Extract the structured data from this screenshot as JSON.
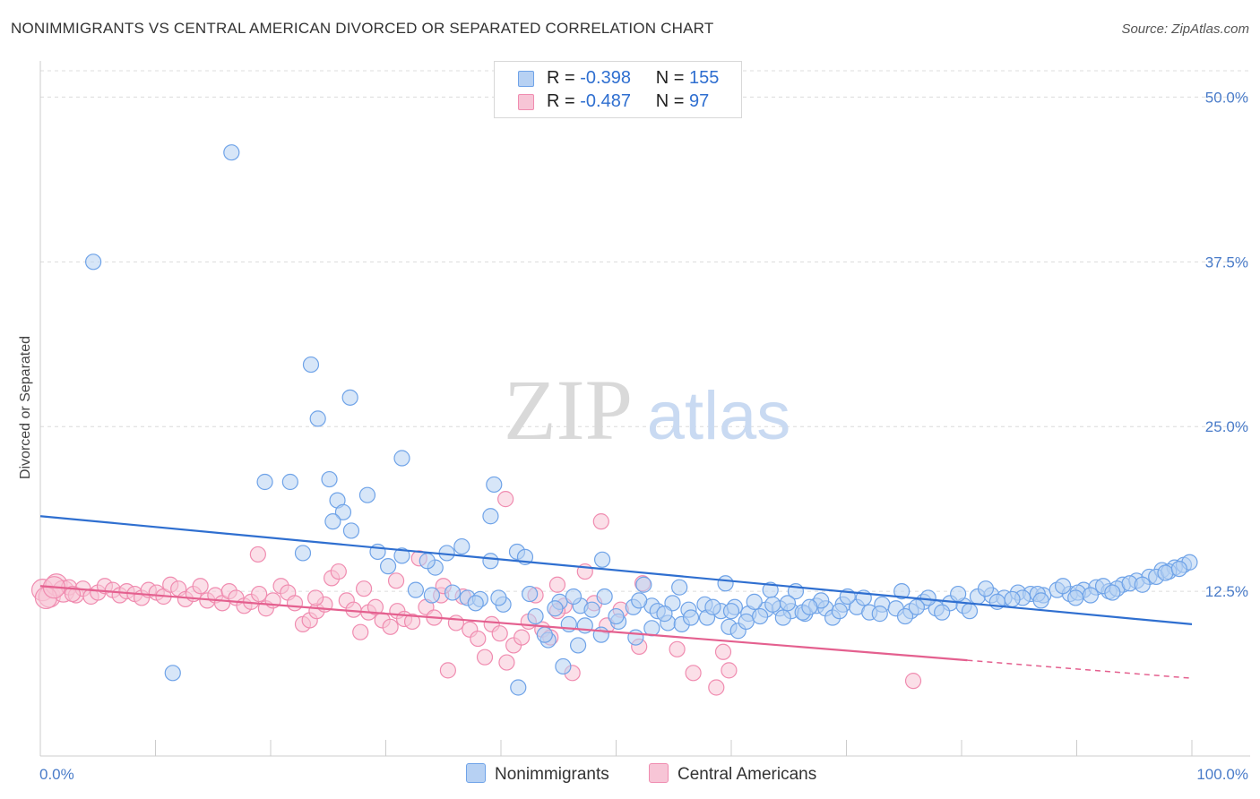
{
  "title": "NONIMMIGRANTS VS CENTRAL AMERICAN DIVORCED OR SEPARATED CORRELATION CHART",
  "source": "Source: ZipAtlas.com",
  "watermark": {
    "zip": "ZIP",
    "atlas": "atlas"
  },
  "legend": {
    "series": [
      {
        "r_label": "R =",
        "r_value": "-0.398",
        "n_label": "N =",
        "n_value": "155",
        "color": "#6fa3e8",
        "fill": "#b7d1f3"
      },
      {
        "r_label": "R =",
        "r_value": "-0.487",
        "n_label": "N =",
        "n_value": "97",
        "color": "#f08cb0",
        "fill": "#f7c5d6"
      }
    ]
  },
  "bottom_legend": [
    "Nonimmigrants",
    "Central Americans"
  ],
  "chart_data": {
    "type": "scatter",
    "title": "NONIMMIGRANTS VS CENTRAL AMERICAN DIVORCED OR SEPARATED CORRELATION CHART",
    "xlabel": "",
    "ylabel": "Divorced or Separated",
    "xlim": [
      0,
      100
    ],
    "ylim": [
      0,
      52
    ],
    "x_tick_labels": [
      "0.0%",
      "100.0%"
    ],
    "y_ticks": [
      12.5,
      25.0,
      37.5,
      50.0
    ],
    "y_tick_labels": [
      "12.5%",
      "25.0%",
      "37.5%",
      "50.0%"
    ],
    "grid": "horizontal dashed",
    "legend_position": "top-center",
    "series": [
      {
        "name": "Nonimmigrants",
        "color": "#6fa3e8",
        "fill": "#b7d1f3",
        "trend": {
          "x": [
            0,
            100
          ],
          "y": [
            18.2,
            10.0
          ],
          "dashed_from": null
        },
        "points": [
          [
            4.6,
            37.5
          ],
          [
            16.6,
            45.8
          ],
          [
            11.5,
            6.3
          ],
          [
            23.5,
            29.7
          ],
          [
            26.9,
            27.2
          ],
          [
            24.1,
            25.6
          ],
          [
            19.5,
            20.8
          ],
          [
            21.7,
            20.8
          ],
          [
            25.1,
            21.0
          ],
          [
            31.4,
            22.6
          ],
          [
            25.8,
            19.4
          ],
          [
            28.4,
            19.8
          ],
          [
            26.3,
            18.5
          ],
          [
            25.4,
            17.8
          ],
          [
            27.0,
            17.1
          ],
          [
            22.8,
            15.4
          ],
          [
            29.3,
            15.5
          ],
          [
            31.4,
            15.2
          ],
          [
            35.3,
            15.4
          ],
          [
            36.6,
            15.9
          ],
          [
            39.1,
            14.8
          ],
          [
            30.2,
            14.4
          ],
          [
            34.3,
            14.3
          ],
          [
            33.6,
            14.8
          ],
          [
            41.4,
            15.5
          ],
          [
            42.1,
            15.1
          ],
          [
            48.8,
            14.9
          ],
          [
            52.4,
            13.0
          ],
          [
            55.5,
            12.8
          ],
          [
            59.5,
            13.1
          ],
          [
            39.4,
            20.6
          ],
          [
            39.1,
            18.2
          ],
          [
            32.6,
            12.6
          ],
          [
            34.0,
            12.2
          ],
          [
            35.8,
            12.4
          ],
          [
            37.1,
            12.0
          ],
          [
            38.2,
            11.9
          ],
          [
            40.2,
            11.5
          ],
          [
            42.5,
            12.3
          ],
          [
            45.1,
            11.7
          ],
          [
            46.9,
            11.4
          ],
          [
            47.9,
            11.1
          ],
          [
            49.0,
            12.1
          ],
          [
            51.5,
            11.3
          ],
          [
            53.1,
            11.4
          ],
          [
            54.9,
            11.6
          ],
          [
            56.3,
            11.1
          ],
          [
            57.7,
            11.5
          ],
          [
            59.1,
            11.0
          ],
          [
            60.3,
            11.3
          ],
          [
            61.5,
            10.8
          ],
          [
            63.0,
            11.1
          ],
          [
            64.2,
            11.2
          ],
          [
            65.2,
            11.0
          ],
          [
            66.4,
            10.8
          ],
          [
            67.4,
            11.4
          ],
          [
            68.2,
            11.2
          ],
          [
            69.7,
            11.5
          ],
          [
            70.9,
            11.3
          ],
          [
            72.0,
            10.9
          ],
          [
            73.1,
            11.5
          ],
          [
            74.3,
            11.2
          ],
          [
            75.6,
            11.0
          ],
          [
            76.7,
            11.7
          ],
          [
            77.8,
            11.2
          ],
          [
            79.0,
            11.6
          ],
          [
            80.2,
            11.4
          ],
          [
            81.4,
            12.1
          ],
          [
            82.6,
            12.2
          ],
          [
            83.7,
            12.0
          ],
          [
            84.9,
            12.4
          ],
          [
            86.0,
            12.3
          ],
          [
            87.1,
            12.2
          ],
          [
            88.3,
            12.6
          ],
          [
            89.4,
            12.3
          ],
          [
            90.6,
            12.6
          ],
          [
            91.7,
            12.8
          ],
          [
            92.8,
            12.5
          ],
          [
            94.0,
            13.0
          ],
          [
            95.2,
            13.3
          ],
          [
            96.3,
            13.6
          ],
          [
            97.4,
            14.1
          ],
          [
            98.5,
            14.3
          ],
          [
            99.3,
            14.5
          ],
          [
            63.4,
            12.6
          ],
          [
            65.6,
            12.5
          ],
          [
            67.8,
            11.8
          ],
          [
            70.1,
            12.1
          ],
          [
            71.5,
            12.0
          ],
          [
            74.8,
            12.5
          ],
          [
            77.1,
            12.0
          ],
          [
            79.7,
            12.3
          ],
          [
            82.1,
            12.7
          ],
          [
            85.3,
            12.0
          ],
          [
            86.6,
            12.3
          ],
          [
            88.8,
            12.9
          ],
          [
            90.1,
            12.4
          ],
          [
            92.3,
            12.9
          ],
          [
            93.5,
            12.7
          ],
          [
            94.6,
            13.1
          ],
          [
            96.9,
            13.6
          ],
          [
            98.0,
            14.0
          ],
          [
            99.8,
            14.7
          ],
          [
            41.5,
            5.2
          ],
          [
            45.4,
            6.8
          ],
          [
            46.7,
            8.4
          ],
          [
            44.1,
            8.8
          ],
          [
            43.8,
            9.2
          ],
          [
            45.9,
            10.0
          ],
          [
            47.3,
            9.9
          ],
          [
            48.7,
            9.2
          ],
          [
            50.2,
            10.2
          ],
          [
            51.7,
            9.0
          ],
          [
            53.1,
            9.7
          ],
          [
            54.5,
            10.1
          ],
          [
            55.7,
            10.0
          ],
          [
            56.5,
            10.5
          ],
          [
            57.9,
            10.5
          ],
          [
            59.8,
            9.8
          ],
          [
            60.6,
            9.5
          ],
          [
            61.3,
            10.2
          ],
          [
            62.5,
            10.6
          ],
          [
            64.5,
            10.5
          ],
          [
            66.2,
            10.9
          ],
          [
            68.8,
            10.5
          ],
          [
            69.4,
            11.0
          ],
          [
            72.9,
            10.8
          ],
          [
            75.1,
            10.6
          ],
          [
            76.1,
            11.3
          ],
          [
            78.3,
            10.9
          ],
          [
            80.7,
            11.0
          ],
          [
            83.1,
            11.7
          ],
          [
            84.4,
            11.9
          ],
          [
            86.9,
            11.8
          ],
          [
            89.9,
            12.0
          ],
          [
            91.2,
            12.2
          ],
          [
            93.1,
            12.4
          ],
          [
            95.7,
            13.0
          ],
          [
            97.7,
            13.9
          ],
          [
            98.9,
            14.2
          ],
          [
            37.8,
            11.6
          ],
          [
            39.8,
            12.0
          ],
          [
            43.0,
            10.6
          ],
          [
            44.7,
            11.2
          ],
          [
            46.3,
            12.1
          ],
          [
            50.0,
            10.6
          ],
          [
            52.0,
            11.8
          ],
          [
            53.6,
            11.0
          ],
          [
            54.2,
            10.8
          ],
          [
            58.4,
            11.3
          ],
          [
            60.0,
            11.0
          ],
          [
            62.0,
            11.7
          ],
          [
            63.6,
            11.5
          ],
          [
            64.9,
            11.6
          ],
          [
            66.8,
            11.3
          ]
        ]
      },
      {
        "name": "Central Americans",
        "color": "#f08cb0",
        "fill": "#f7c5d6",
        "trend": {
          "x": [
            0,
            100
          ],
          "y": [
            12.9,
            5.9
          ],
          "dashed_from": 80.5
        },
        "points": [
          [
            0.2,
            12.6
          ],
          [
            0.8,
            12.1
          ],
          [
            1.4,
            13.0
          ],
          [
            2.0,
            12.5
          ],
          [
            2.5,
            12.8
          ],
          [
            3.1,
            12.2
          ],
          [
            3.7,
            12.7
          ],
          [
            4.4,
            12.1
          ],
          [
            5.0,
            12.4
          ],
          [
            5.6,
            12.9
          ],
          [
            6.3,
            12.6
          ],
          [
            6.9,
            12.2
          ],
          [
            7.5,
            12.5
          ],
          [
            8.2,
            12.3
          ],
          [
            8.8,
            12.0
          ],
          [
            9.4,
            12.6
          ],
          [
            10.1,
            12.4
          ],
          [
            10.7,
            12.1
          ],
          [
            11.3,
            13.0
          ],
          [
            12.0,
            12.7
          ],
          [
            12.6,
            11.9
          ],
          [
            13.3,
            12.3
          ],
          [
            13.9,
            12.9
          ],
          [
            14.5,
            11.8
          ],
          [
            15.2,
            12.2
          ],
          [
            15.8,
            11.6
          ],
          [
            16.4,
            12.5
          ],
          [
            17.0,
            12.0
          ],
          [
            17.7,
            11.4
          ],
          [
            18.3,
            11.7
          ],
          [
            19.0,
            12.3
          ],
          [
            19.6,
            11.2
          ],
          [
            20.2,
            11.8
          ],
          [
            20.9,
            12.9
          ],
          [
            21.5,
            12.4
          ],
          [
            22.1,
            11.6
          ],
          [
            22.8,
            10.0
          ],
          [
            23.4,
            10.3
          ],
          [
            24.0,
            11.0
          ],
          [
            24.7,
            11.5
          ],
          [
            25.3,
            13.5
          ],
          [
            25.9,
            14.0
          ],
          [
            26.6,
            11.8
          ],
          [
            27.2,
            11.1
          ],
          [
            27.8,
            9.4
          ],
          [
            28.5,
            10.9
          ],
          [
            29.1,
            11.3
          ],
          [
            29.7,
            10.3
          ],
          [
            30.4,
            9.8
          ],
          [
            31.0,
            11.0
          ],
          [
            31.6,
            10.4
          ],
          [
            32.3,
            10.2
          ],
          [
            32.9,
            15.0
          ],
          [
            33.5,
            11.3
          ],
          [
            34.2,
            10.5
          ],
          [
            34.8,
            12.2
          ],
          [
            35.4,
            6.5
          ],
          [
            36.1,
            10.1
          ],
          [
            36.7,
            12.1
          ],
          [
            37.3,
            9.6
          ],
          [
            38.0,
            8.9
          ],
          [
            38.6,
            7.5
          ],
          [
            39.2,
            10.0
          ],
          [
            39.9,
            9.3
          ],
          [
            40.5,
            7.1
          ],
          [
            41.1,
            8.4
          ],
          [
            41.8,
            9.0
          ],
          [
            42.4,
            10.2
          ],
          [
            43.0,
            12.2
          ],
          [
            43.6,
            9.6
          ],
          [
            44.3,
            9.0
          ],
          [
            44.9,
            13.0
          ],
          [
            45.5,
            11.4
          ],
          [
            46.2,
            6.3
          ],
          [
            47.3,
            14.0
          ],
          [
            48.1,
            11.6
          ],
          [
            49.2,
            9.9
          ],
          [
            50.4,
            11.1
          ],
          [
            52.0,
            8.3
          ],
          [
            55.3,
            8.1
          ],
          [
            56.7,
            6.3
          ],
          [
            58.7,
            5.2
          ],
          [
            59.3,
            7.9
          ],
          [
            59.8,
            6.5
          ],
          [
            75.8,
            5.7
          ],
          [
            18.9,
            15.3
          ],
          [
            44.9,
            11.0
          ],
          [
            40.4,
            19.5
          ],
          [
            35.0,
            12.9
          ],
          [
            48.7,
            17.8
          ],
          [
            52.3,
            13.1
          ],
          [
            30.9,
            13.3
          ],
          [
            0.5,
            12.0
          ],
          [
            1.2,
            12.8
          ],
          [
            2.8,
            12.3
          ],
          [
            23.9,
            12.0
          ],
          [
            28.1,
            12.7
          ]
        ]
      }
    ]
  }
}
